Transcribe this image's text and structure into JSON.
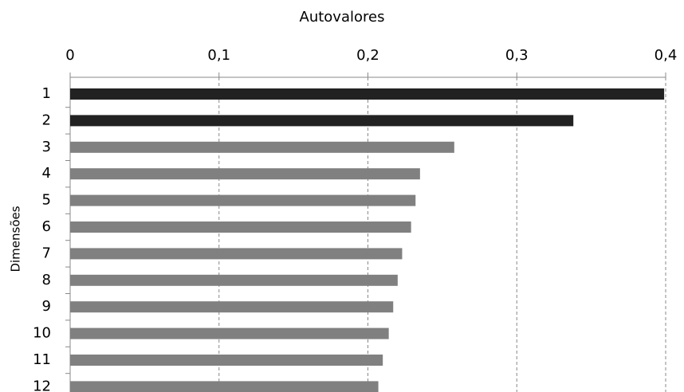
{
  "chart_data": {
    "type": "bar",
    "orientation": "horizontal",
    "title": "Autovalores",
    "y_label": "Dimensões",
    "categories": [
      "1",
      "2",
      "3",
      "4",
      "5",
      "6",
      "7",
      "8",
      "9",
      "10",
      "11",
      "12"
    ],
    "values": [
      0.399,
      0.338,
      0.258,
      0.235,
      0.232,
      0.229,
      0.223,
      0.22,
      0.217,
      0.214,
      0.21,
      0.207
    ],
    "colors": [
      "#222222",
      "#222222",
      "#808080",
      "#808080",
      "#808080",
      "#808080",
      "#808080",
      "#808080",
      "#808080",
      "#808080",
      "#808080",
      "#808080"
    ],
    "xlim": [
      0,
      0.4
    ],
    "xticks": [
      0,
      {
        "value": 0.1,
        "label": "0,1"
      },
      {
        "value": 0.2,
        "label": "0,2"
      },
      {
        "value": 0.3,
        "label": "0,3"
      },
      {
        "value": 0.4,
        "label": "0,4"
      }
    ],
    "grid": true
  }
}
